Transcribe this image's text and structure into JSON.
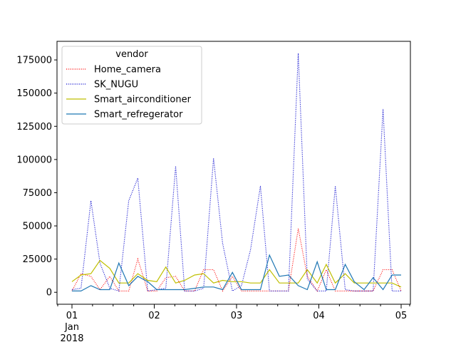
{
  "chart_data": {
    "type": "line",
    "title": "",
    "xlabel": "",
    "ylabel": "",
    "x_tick_labels": [
      "01",
      "02",
      "03",
      "04",
      "05"
    ],
    "x_tick_sublabel_month": "Jan",
    "x_tick_sublabel_year": "2018",
    "x_range_days": [
      0.0,
      4.05
    ],
    "y_range": [
      -9000,
      189000
    ],
    "y_ticks": [
      0,
      25000,
      50000,
      75000,
      100000,
      125000,
      150000,
      175000
    ],
    "y_tick_labels": [
      "0",
      "25000",
      "50000",
      "75000",
      "100000",
      "125000",
      "150000",
      "175000"
    ],
    "grid": false,
    "legend": {
      "title": "vendor",
      "placement": "top-left"
    },
    "x_day": [
      0.0,
      0.11,
      0.23,
      0.34,
      0.46,
      0.57,
      0.69,
      0.8,
      0.92,
      1.03,
      1.14,
      1.26,
      1.37,
      1.49,
      1.6,
      1.72,
      1.83,
      1.95,
      2.06,
      2.17,
      2.29,
      2.4,
      2.52,
      2.63,
      2.75,
      2.86,
      2.98,
      3.09,
      3.2,
      3.32,
      3.43,
      3.55,
      3.66,
      3.78,
      3.89,
      4.0
    ],
    "series": [
      {
        "name": "Home_camera",
        "color": "#ff0000",
        "style": "dotted",
        "values": [
          1000,
          14000,
          12000,
          2000,
          12000,
          1000,
          1000,
          25000,
          1000,
          1000,
          11000,
          12000,
          1000,
          1000,
          17000,
          17000,
          1000,
          12000,
          1000,
          1000,
          1000,
          1000,
          1000,
          1000,
          48000,
          12000,
          1000,
          17000,
          1000,
          1000,
          1000,
          1000,
          1000,
          17000,
          17000,
          1000
        ]
      },
      {
        "name": "SK_NUGU",
        "color": "#0000cc",
        "style": "dotted",
        "values": [
          2000,
          3000,
          69000,
          22000,
          3000,
          1000,
          69000,
          86000,
          1000,
          2000,
          3000,
          95000,
          1000,
          1000,
          3000,
          101000,
          37000,
          1000,
          5000,
          32000,
          80000,
          1000,
          1000,
          1000,
          180000,
          10000,
          1000,
          1000,
          80000,
          2000,
          1000,
          1000,
          1000,
          138000,
          1000,
          1000
        ]
      },
      {
        "name": "Smart_airconditioner",
        "color": "#bfbf00",
        "style": "solid",
        "values": [
          8000,
          13000,
          14000,
          24000,
          18000,
          7000,
          7000,
          14000,
          9000,
          8000,
          19000,
          7000,
          9000,
          13000,
          14000,
          7000,
          9000,
          8000,
          8000,
          7000,
          7000,
          17000,
          7000,
          7000,
          7000,
          17000,
          7000,
          21000,
          7000,
          14000,
          7000,
          7000,
          7000,
          7000,
          7000,
          4000
        ]
      },
      {
        "name": "Smart_refregerator",
        "color": "#1f77b4",
        "style": "solid",
        "values": [
          1000,
          1000,
          5000,
          2000,
          2000,
          22000,
          5000,
          12000,
          8000,
          2000,
          2000,
          2000,
          2000,
          3000,
          4000,
          4000,
          2000,
          15000,
          2000,
          2000,
          2000,
          28000,
          12000,
          13000,
          5000,
          2000,
          23000,
          2000,
          2000,
          21000,
          8000,
          2000,
          11000,
          2000,
          13000,
          13000
        ]
      }
    ]
  }
}
